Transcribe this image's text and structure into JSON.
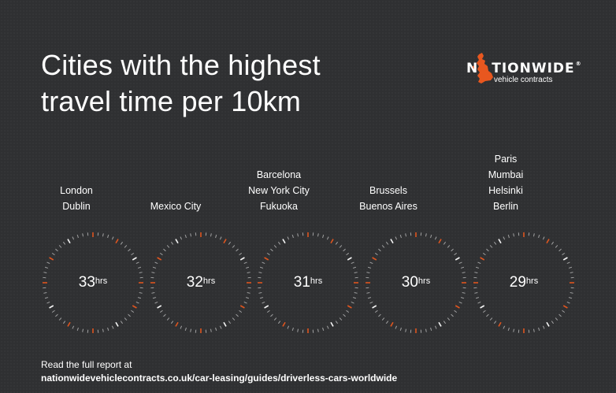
{
  "title_lines": [
    "Cities with the highest",
    "travel time per 10km"
  ],
  "logo": {
    "word_start": "N",
    "word_rest": "TIONWIDE",
    "registered": "®",
    "subtitle": "vehicle contracts",
    "accent_color": "#e8571f"
  },
  "colors": {
    "background": "#2f3032",
    "text": "#ffffff",
    "accent": "#e8571f"
  },
  "chart_data": {
    "type": "radial",
    "unit": "hrs",
    "groups": [
      {
        "value": 33,
        "label": "33",
        "cities": [
          "London",
          "Dublin"
        ]
      },
      {
        "value": 32,
        "label": "32",
        "cities": [
          "Mexico City"
        ]
      },
      {
        "value": 31,
        "label": "31",
        "cities": [
          "Barcelona",
          "New York City",
          "Fukuoka"
        ]
      },
      {
        "value": 30,
        "label": "30",
        "cities": [
          "Brussels",
          "Buenos Aires"
        ]
      },
      {
        "value": 29,
        "label": "29",
        "cities": [
          "Paris",
          "Mumbai",
          "Helsinki",
          "Berlin"
        ]
      }
    ]
  },
  "footer": {
    "line1": "Read the full report at",
    "url": "nationwidevehiclecontracts.co.uk/car-leasing/guides/driverless-cars-worldwide"
  }
}
